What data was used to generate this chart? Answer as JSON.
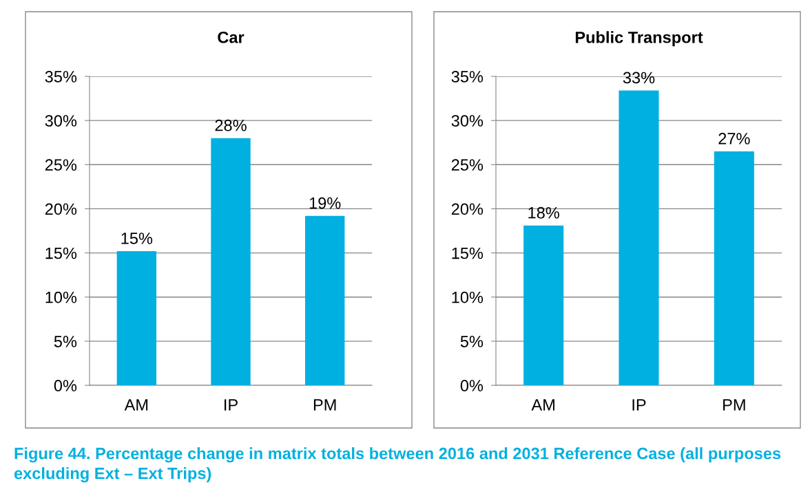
{
  "chart_data": [
    {
      "type": "bar",
      "title": "Car",
      "categories": [
        "AM",
        "IP",
        "PM"
      ],
      "values": [
        15.2,
        28.0,
        19.2
      ],
      "value_labels": [
        "15%",
        "28%",
        "19%"
      ],
      "color": "#00b0e0",
      "ylim": [
        0,
        35
      ],
      "yticks": [
        {
          "value": 0,
          "label": "0%"
        },
        {
          "value": 5,
          "label": "5%"
        },
        {
          "value": 10,
          "label": "10%"
        },
        {
          "value": 15,
          "label": "15%"
        },
        {
          "value": 20,
          "label": "20%"
        },
        {
          "value": 25,
          "label": "25%"
        },
        {
          "value": 30,
          "label": "30%"
        },
        {
          "value": 35,
          "label": "35%"
        }
      ],
      "grid": "y",
      "legend": false,
      "annotations": [
        "Figure 44. Percentage change in matrix totals between 2016 and 2031 Reference Case (all purposes excluding Ext – Ext Trips)"
      ]
    },
    {
      "type": "bar",
      "title": "Public Transport",
      "categories": [
        "AM",
        "IP",
        "PM"
      ],
      "values": [
        18.1,
        33.4,
        26.5
      ],
      "value_labels": [
        "18%",
        "33%",
        "27%"
      ],
      "color": "#00b0e0",
      "ylim": [
        0,
        35
      ],
      "yticks": [
        {
          "value": 0,
          "label": "0%"
        },
        {
          "value": 5,
          "label": "5%"
        },
        {
          "value": 10,
          "label": "10%"
        },
        {
          "value": 15,
          "label": "15%"
        },
        {
          "value": 20,
          "label": "20%"
        },
        {
          "value": 25,
          "label": "25%"
        },
        {
          "value": 30,
          "label": "30%"
        },
        {
          "value": 35,
          "label": "35%"
        }
      ],
      "grid": "y",
      "legend": false
    }
  ]
}
